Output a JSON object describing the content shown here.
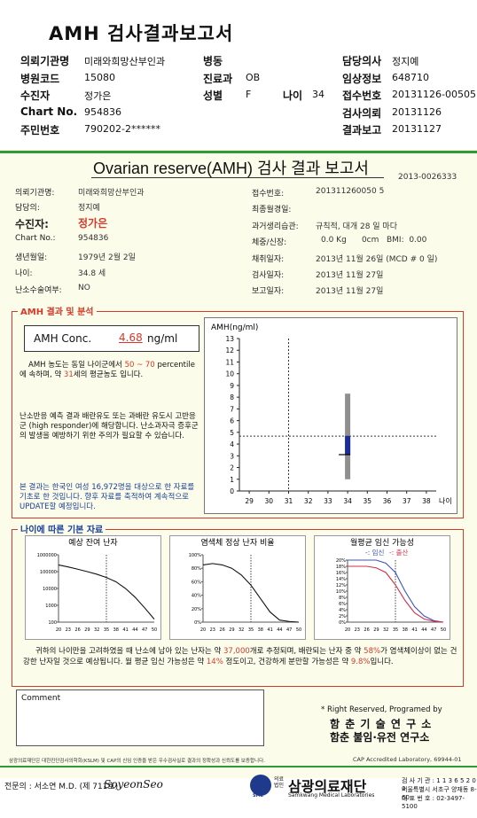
{
  "header": {
    "title": "AMH 검사결과보고서",
    "left_rows": [
      {
        "label": "의뢰기관명",
        "value": "미래와희망산부인과"
      },
      {
        "label": "병원코드",
        "value": "15080"
      },
      {
        "label": "수진자",
        "value": "정가은"
      },
      {
        "label": "Chart No.",
        "value": "954836"
      },
      {
        "label": "주민번호",
        "value": "790202-2******"
      }
    ],
    "mid_rows": [
      {
        "label": "병동",
        "value": ""
      },
      {
        "label": "진료과",
        "value": "OB"
      },
      {
        "label": "성별",
        "value": "F"
      }
    ],
    "age": {
      "label": "나이",
      "value": "34"
    },
    "right_rows": [
      {
        "label": "담당의사",
        "value": "정지예"
      },
      {
        "label": "임상정보",
        "value": "648710"
      },
      {
        "label": "접수번호",
        "value": "20131126-00505"
      },
      {
        "label": "검사의뢰",
        "value": "20131126"
      },
      {
        "label": "결과보고",
        "value": "20131127"
      }
    ]
  },
  "report": {
    "title": "Ovarian reserve(AMH) 검사 결과 보고서",
    "doc_no": "2013-0026333",
    "left_info": [
      {
        "label": "의뢰기관명:",
        "value": "미래와희망산부인과"
      },
      {
        "label": "담당의:",
        "value": "정지예"
      },
      {
        "label": "수진자:",
        "value": "정가은"
      },
      {
        "label": "Chart No.:",
        "value": "954836"
      },
      {
        "label": "생년월일:",
        "value": "1979년 2월 2일"
      },
      {
        "label": "나이:",
        "value": "34.8 세"
      },
      {
        "label": "난소수술여부:",
        "value": "NO"
      }
    ],
    "right_info": [
      {
        "label": "접수번호:",
        "value": "201311260050 5"
      },
      {
        "label": "최종월경일:",
        "value": ""
      },
      {
        "label": "과거생리습관:",
        "value": "규칙적, 대개  28 일 마다"
      },
      {
        "label": "체중/신장:",
        "value": "0.0 Kg      0cm   BMI:  0.00"
      },
      {
        "label": "채취일자:",
        "value": "2013년 11월 26일 (MCD # 0 일)"
      },
      {
        "label": "검사일자:",
        "value": "2013년 11월 27일"
      },
      {
        "label": "보고일자:",
        "value": "2013년 11월 27일"
      }
    ],
    "analysis": {
      "section_title": "AMH 결과 및 분석",
      "conc_label": "AMH Conc.",
      "conc_value": "4.68",
      "conc_unit": "ng/ml",
      "p1_a": "AMH 농도는 동일 나이군에서",
      "p1_range": "50 ~ 70",
      "p1_b": "percentile에 속하며, 약",
      "p1_age": "31",
      "p1_c": "세의 평균농도 입니다.",
      "p2": "난소반응 예측 결과 배란유도 또는 과배란 유도시 고반응군 (high responder)에 해당합니다. 난소과자극 증후군의 발생을 예방하기 위한 주의가 필요할 수 있습니다.",
      "p3": "본 결과는 한국인 여성 16,972명을 대상으로 한 자료를 기초로 한 것입니다. 향후 자료를 축적하여 계속적으로 UPDATE할 예정입니다."
    },
    "age_section": {
      "title": "나이에 따른 기본 자료",
      "chart1_title": "예상 잔여 난자",
      "chart2_title": "염색체 정상 난자 비율",
      "chart3_title": "월평균 임신 가능성",
      "chart3_legend_a": "-: 임신",
      "chart3_legend_b": "-: 출산",
      "summary_a": "귀하의 나이만을 고려하였을 때 난소에 남아 있는 난자는 약",
      "summary_n": "37,000",
      "summary_b": "개로 추정되며, 배란되는 난자 중",
      "summary_c": "약",
      "summary_pct1": "58%",
      "summary_d": "가 염색체이상이 없는 건강한 난자일 것으로 예상됩니다. 월 평균 임신 가능성은 약",
      "summary_pct2": "14%",
      "summary_e": "정도이고,",
      "summary_f": "건강하게 분만할 가능성은 약",
      "summary_pct3": "9.8%",
      "summary_g": "입니다."
    },
    "comment_label": "Comment",
    "rights": "* Right Reserved, Programed by",
    "org1": "함 춘 기 술 연 구 소",
    "org2": "함춘 불임·유전 연구소",
    "cert": "삼광의료재단은 대한진단검사의학회(KSLM) 및 CAP의 신임 인증을 받은 우수검사실로 결과의 정확성과 신뢰도를 보증합니다.",
    "cap": "CAP  Accredited  Laboratory,  69944-01"
  },
  "footer": {
    "specialist": "전문의 : 서소연 M.D. (제 711호)",
    "signature": "SoyeonSeo",
    "foundation_prefix": "의료법인",
    "foundation": "삼광의료재단",
    "foundation_en": "Samkwang Medical Laboratories",
    "logo": "SML",
    "reg": "검 사 기 관 : 1 1 3 6 5 2 0 0",
    "addr": "서울특별시 서초구 양재동 8-60",
    "tel": "대 표 번 호 : 02-3497-5100"
  },
  "chart_data": [
    {
      "type": "bar",
      "title": "AMH(ng/ml)",
      "xlabel": "나이",
      "ylabel": "",
      "xlim": [
        28.5,
        38.5
      ],
      "ylim": [
        0,
        13
      ],
      "x_ticks": [
        29,
        30,
        31,
        32,
        33,
        34,
        35,
        36,
        37,
        38
      ],
      "y_ticks": [
        0,
        1,
        2,
        3,
        4,
        5,
        6,
        7,
        8,
        9,
        10,
        11,
        12,
        13
      ],
      "reference_range": {
        "x": 34,
        "low": 1.0,
        "high": 8.3
      },
      "iqr_box": {
        "x": 34,
        "low": 3.1,
        "high": 4.7
      },
      "median": 3.1,
      "patient": {
        "age": 34.8,
        "amh": 4.68
      },
      "crosshair": {
        "x_age": 31,
        "y_amh": 4.68
      },
      "colors": {
        "range": "#8f8f8f",
        "box": "#1c2c9c",
        "axis": "#222"
      }
    },
    {
      "type": "line",
      "title": "예상 잔여 난자",
      "y_scale": "log",
      "y_ticks": [
        "1000000",
        "100000",
        "10000",
        "1000",
        "100"
      ],
      "x_ticks": [
        20,
        23,
        26,
        29,
        32,
        35,
        38,
        41,
        44,
        47,
        50
      ],
      "marker_age": 35,
      "series": [
        {
          "x": [
            20,
            23,
            26,
            29,
            32,
            35,
            38,
            41,
            44,
            47,
            50
          ],
          "y": [
            250000,
            190000,
            140000,
            100000,
            70000,
            45000,
            25000,
            10000,
            3000,
            700,
            150
          ]
        }
      ]
    },
    {
      "type": "line",
      "title": "염색체 정상 난자 비율",
      "y_ticks": [
        "100%",
        "80%",
        "60%",
        "40%",
        "20%",
        "0%"
      ],
      "x_ticks": [
        20,
        23,
        26,
        29,
        32,
        35,
        38,
        41,
        44,
        47,
        50
      ],
      "marker_age": 35,
      "series": [
        {
          "x": [
            20,
            23,
            26,
            29,
            32,
            35,
            38,
            41,
            44,
            47,
            50
          ],
          "y": [
            85,
            87,
            85,
            80,
            70,
            55,
            35,
            15,
            3,
            1,
            0
          ]
        }
      ]
    },
    {
      "type": "line",
      "title": "월평균 임신 가능성",
      "y_ticks": [
        "20%",
        "18%",
        "16%",
        "14%",
        "12%",
        "10%",
        "8%",
        "6%",
        "4%",
        "2%",
        "0%"
      ],
      "x_ticks": [
        20,
        23,
        26,
        29,
        32,
        35,
        38,
        41,
        44,
        47,
        50
      ],
      "marker_age": 35,
      "series": [
        {
          "name": "임신",
          "color": "#3a55c0",
          "x": [
            20,
            23,
            26,
            29,
            32,
            35,
            38,
            41,
            44,
            47,
            50
          ],
          "y": [
            20,
            20,
            20,
            20,
            19,
            16,
            10,
            5,
            2,
            0.5,
            0
          ]
        },
        {
          "name": "출산",
          "color": "#d0304a",
          "x": [
            20,
            23,
            26,
            29,
            32,
            35,
            38,
            41,
            44,
            47,
            50
          ],
          "y": [
            18,
            18,
            18,
            17.5,
            16,
            12,
            7,
            3,
            1,
            0.3,
            0
          ]
        }
      ]
    }
  ]
}
